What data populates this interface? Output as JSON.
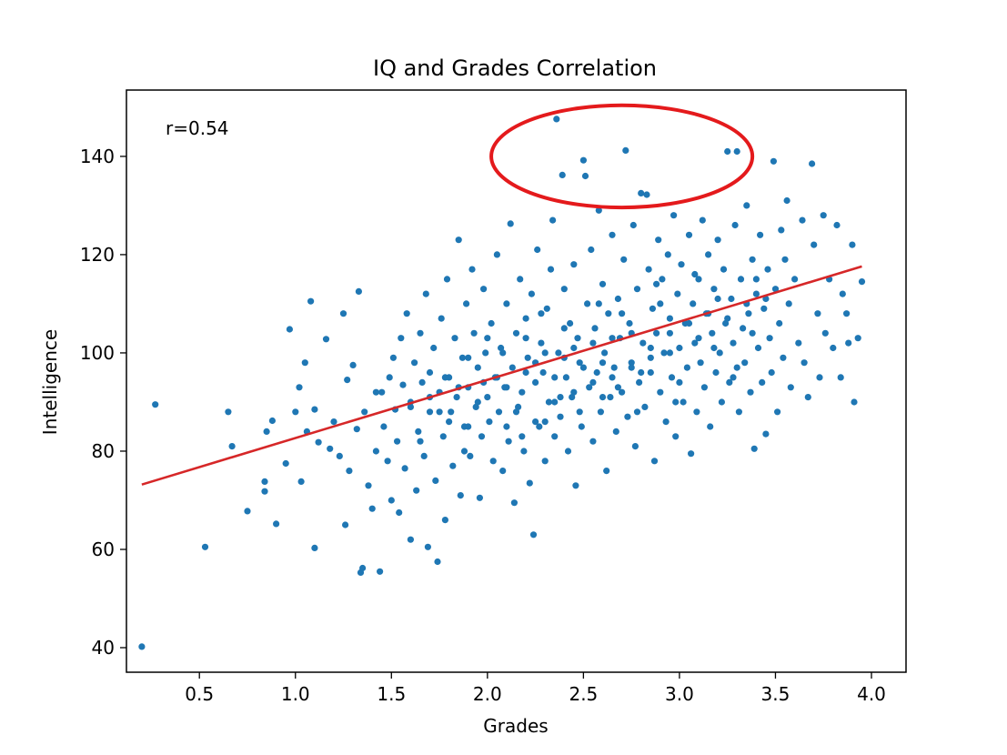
{
  "chart_data": {
    "type": "scatter",
    "title": "IQ and Grades Correlation",
    "xlabel": "Grades",
    "ylabel": "Intelligence",
    "xlim": [
      0.12,
      4.18
    ],
    "ylim": [
      35.0,
      153.5
    ],
    "x_ticks": [
      0.5,
      1.0,
      1.5,
      2.0,
      2.5,
      3.0,
      3.5,
      4.0
    ],
    "x_tick_labels": [
      "0.5",
      "1.0",
      "1.5",
      "2.0",
      "2.5",
      "3.0",
      "3.5",
      "4.0"
    ],
    "y_ticks": [
      40,
      60,
      80,
      100,
      120,
      140
    ],
    "y_tick_labels": [
      "40",
      "60",
      "80",
      "100",
      "120",
      "140"
    ],
    "annotation": "r=0.54",
    "grid": false,
    "point_color": "#1f77b4",
    "fit_color": "#d62728",
    "highlight_color": "#e41a1c",
    "fit_line": {
      "x": [
        0.2,
        3.95
      ],
      "y": [
        73.2,
        117.6
      ]
    },
    "highlight_ellipse": {
      "cx": 2.7,
      "cy": 140.0,
      "rx": 0.68,
      "ry": 10.4
    },
    "points": [
      [
        0.2,
        40.2
      ],
      [
        0.27,
        89.5
      ],
      [
        0.53,
        60.5
      ],
      [
        0.65,
        88
      ],
      [
        0.67,
        81
      ],
      [
        0.75,
        67.8
      ],
      [
        0.84,
        71.8
      ],
      [
        0.84,
        73.8
      ],
      [
        0.85,
        84
      ],
      [
        0.88,
        86.2
      ],
      [
        0.9,
        65.2
      ],
      [
        0.95,
        77.5
      ],
      [
        0.97,
        104.8
      ],
      [
        1.0,
        88
      ],
      [
        1.02,
        93
      ],
      [
        1.03,
        73.8
      ],
      [
        1.05,
        98
      ],
      [
        1.06,
        84
      ],
      [
        1.08,
        110.5
      ],
      [
        1.1,
        60.3
      ],
      [
        1.1,
        88.5
      ],
      [
        1.12,
        81.8
      ],
      [
        1.16,
        102.8
      ],
      [
        1.18,
        80.5
      ],
      [
        1.2,
        86
      ],
      [
        1.23,
        79
      ],
      [
        1.25,
        108
      ],
      [
        1.26,
        65
      ],
      [
        1.27,
        94.5
      ],
      [
        1.28,
        76
      ],
      [
        1.3,
        97.5
      ],
      [
        1.32,
        84.5
      ],
      [
        1.33,
        112.5
      ],
      [
        1.34,
        55.3
      ],
      [
        1.35,
        56.2
      ],
      [
        1.36,
        88
      ],
      [
        1.38,
        73
      ],
      [
        1.4,
        68.3
      ],
      [
        1.42,
        80
      ],
      [
        1.44,
        55.5
      ],
      [
        1.45,
        92
      ],
      [
        1.46,
        85
      ],
      [
        1.48,
        78
      ],
      [
        1.49,
        95
      ],
      [
        1.5,
        70
      ],
      [
        1.51,
        99
      ],
      [
        1.52,
        88.5
      ],
      [
        1.53,
        82
      ],
      [
        1.54,
        67.5
      ],
      [
        1.55,
        103
      ],
      [
        1.56,
        93.5
      ],
      [
        1.57,
        76.5
      ],
      [
        1.58,
        108
      ],
      [
        1.6,
        62
      ],
      [
        1.6,
        89
      ],
      [
        1.62,
        98
      ],
      [
        1.63,
        72
      ],
      [
        1.64,
        84
      ],
      [
        1.65,
        104
      ],
      [
        1.66,
        94
      ],
      [
        1.67,
        79
      ],
      [
        1.68,
        112
      ],
      [
        1.69,
        60.5
      ],
      [
        1.7,
        88
      ],
      [
        1.7,
        96
      ],
      [
        1.72,
        101
      ],
      [
        1.73,
        74
      ],
      [
        1.74,
        57.5
      ],
      [
        1.75,
        92
      ],
      [
        1.76,
        107
      ],
      [
        1.77,
        83
      ],
      [
        1.78,
        66
      ],
      [
        1.79,
        115
      ],
      [
        1.8,
        95
      ],
      [
        1.81,
        88
      ],
      [
        1.82,
        77
      ],
      [
        1.83,
        103
      ],
      [
        1.84,
        91
      ],
      [
        1.85,
        123
      ],
      [
        1.86,
        71
      ],
      [
        1.87,
        99
      ],
      [
        1.88,
        85
      ],
      [
        1.89,
        110
      ],
      [
        1.9,
        93
      ],
      [
        1.91,
        79
      ],
      [
        1.92,
        117
      ],
      [
        1.93,
        104
      ],
      [
        1.94,
        89
      ],
      [
        1.95,
        97
      ],
      [
        1.96,
        70.5
      ],
      [
        1.97,
        83
      ],
      [
        1.98,
        113
      ],
      [
        1.99,
        100
      ],
      [
        2.0,
        91
      ],
      [
        2.01,
        86
      ],
      [
        2.02,
        106
      ],
      [
        2.03,
        78
      ],
      [
        2.04,
        95
      ],
      [
        2.05,
        120
      ],
      [
        2.06,
        88
      ],
      [
        2.07,
        101
      ],
      [
        2.08,
        76
      ],
      [
        2.09,
        93
      ],
      [
        2.1,
        110
      ],
      [
        2.11,
        82
      ],
      [
        2.12,
        126.3
      ],
      [
        2.13,
        97
      ],
      [
        2.14,
        69.5
      ],
      [
        2.15,
        104
      ],
      [
        2.16,
        89
      ],
      [
        2.17,
        115
      ],
      [
        2.18,
        92
      ],
      [
        2.19,
        80
      ],
      [
        2.2,
        107
      ],
      [
        2.21,
        99
      ],
      [
        2.22,
        73.5
      ],
      [
        2.23,
        112
      ],
      [
        2.24,
        63
      ],
      [
        2.25,
        94
      ],
      [
        2.26,
        121
      ],
      [
        2.27,
        85
      ],
      [
        2.28,
        102
      ],
      [
        2.29,
        96
      ],
      [
        2.3,
        78
      ],
      [
        2.31,
        109
      ],
      [
        2.32,
        90
      ],
      [
        2.33,
        117
      ],
      [
        2.34,
        127
      ],
      [
        2.35,
        83
      ],
      [
        2.36,
        147.6
      ],
      [
        2.37,
        100
      ],
      [
        2.38,
        87
      ],
      [
        2.39,
        136.2
      ],
      [
        2.4,
        113
      ],
      [
        2.41,
        95
      ],
      [
        2.42,
        80
      ],
      [
        2.43,
        106
      ],
      [
        2.44,
        91
      ],
      [
        2.45,
        118
      ],
      [
        2.46,
        73
      ],
      [
        2.47,
        103
      ],
      [
        2.48,
        98
      ],
      [
        2.49,
        85
      ],
      [
        2.5,
        139.2
      ],
      [
        2.51,
        136
      ],
      [
        2.52,
        110
      ],
      [
        2.53,
        93
      ],
      [
        2.54,
        121
      ],
      [
        2.55,
        82
      ],
      [
        2.56,
        105
      ],
      [
        2.57,
        96
      ],
      [
        2.58,
        129
      ],
      [
        2.59,
        88
      ],
      [
        2.6,
        114
      ],
      [
        2.61,
        100
      ],
      [
        2.62,
        76
      ],
      [
        2.63,
        108
      ],
      [
        2.64,
        91
      ],
      [
        2.65,
        124
      ],
      [
        2.66,
        97
      ],
      [
        2.67,
        84
      ],
      [
        2.68,
        111
      ],
      [
        2.69,
        103
      ],
      [
        2.7,
        92
      ],
      [
        2.71,
        119
      ],
      [
        2.72,
        141.2
      ],
      [
        2.73,
        87
      ],
      [
        2.74,
        106
      ],
      [
        2.75,
        98
      ],
      [
        2.76,
        126
      ],
      [
        2.77,
        81
      ],
      [
        2.78,
        113
      ],
      [
        2.79,
        94
      ],
      [
        2.8,
        132.5
      ],
      [
        2.81,
        102
      ],
      [
        2.82,
        89
      ],
      [
        2.83,
        132.2
      ],
      [
        2.84,
        117
      ],
      [
        2.85,
        96
      ],
      [
        2.86,
        109
      ],
      [
        2.87,
        78
      ],
      [
        2.88,
        104
      ],
      [
        2.89,
        123
      ],
      [
        2.9,
        92
      ],
      [
        2.91,
        115
      ],
      [
        2.92,
        100
      ],
      [
        2.93,
        86
      ],
      [
        2.94,
        120
      ],
      [
        2.95,
        107
      ],
      [
        2.96,
        95
      ],
      [
        2.97,
        128
      ],
      [
        2.98,
        83
      ],
      [
        2.99,
        112
      ],
      [
        3.0,
        101
      ],
      [
        3.01,
        118
      ],
      [
        3.02,
        90
      ],
      [
        3.03,
        106
      ],
      [
        3.04,
        97
      ],
      [
        3.05,
        124
      ],
      [
        3.06,
        79.5
      ],
      [
        3.07,
        110
      ],
      [
        3.08,
        102
      ],
      [
        3.09,
        88
      ],
      [
        3.1,
        115
      ],
      [
        3.11,
        98
      ],
      [
        3.12,
        127
      ],
      [
        3.13,
        93
      ],
      [
        3.14,
        108
      ],
      [
        3.15,
        120
      ],
      [
        3.16,
        85
      ],
      [
        3.17,
        104
      ],
      [
        3.18,
        113
      ],
      [
        3.19,
        96
      ],
      [
        3.2,
        123
      ],
      [
        3.21,
        100
      ],
      [
        3.22,
        90
      ],
      [
        3.23,
        117
      ],
      [
        3.24,
        106
      ],
      [
        3.25,
        141
      ],
      [
        3.26,
        94
      ],
      [
        3.27,
        111
      ],
      [
        3.28,
        102
      ],
      [
        3.29,
        126
      ],
      [
        3.3,
        141
      ],
      [
        3.31,
        88
      ],
      [
        3.32,
        115
      ],
      [
        3.33,
        105
      ],
      [
        3.34,
        98
      ],
      [
        3.35,
        130
      ],
      [
        3.36,
        108
      ],
      [
        3.37,
        92
      ],
      [
        3.38,
        119
      ],
      [
        3.39,
        80.5
      ],
      [
        3.4,
        112
      ],
      [
        3.41,
        101
      ],
      [
        3.42,
        124
      ],
      [
        3.43,
        94
      ],
      [
        3.44,
        109
      ],
      [
        3.45,
        83.5
      ],
      [
        3.46,
        117
      ],
      [
        3.47,
        103
      ],
      [
        3.48,
        96
      ],
      [
        3.49,
        139
      ],
      [
        3.5,
        113
      ],
      [
        3.51,
        88
      ],
      [
        3.52,
        106
      ],
      [
        3.53,
        125
      ],
      [
        3.54,
        99
      ],
      [
        3.55,
        119
      ],
      [
        3.56,
        131
      ],
      [
        3.57,
        110
      ],
      [
        3.58,
        93
      ],
      [
        3.6,
        115
      ],
      [
        3.62,
        102
      ],
      [
        3.64,
        127
      ],
      [
        3.65,
        98
      ],
      [
        3.67,
        91
      ],
      [
        3.69,
        138.5
      ],
      [
        3.7,
        122
      ],
      [
        3.72,
        108
      ],
      [
        3.73,
        95
      ],
      [
        3.75,
        128
      ],
      [
        3.76,
        104
      ],
      [
        3.78,
        115
      ],
      [
        3.8,
        101
      ],
      [
        3.82,
        126
      ],
      [
        3.84,
        95
      ],
      [
        3.85,
        112
      ],
      [
        3.87,
        108
      ],
      [
        3.88,
        102
      ],
      [
        3.9,
        122
      ],
      [
        3.91,
        90
      ],
      [
        3.93,
        103
      ],
      [
        3.95,
        114.5
      ],
      [
        1.42,
        92
      ],
      [
        1.6,
        90
      ],
      [
        1.7,
        91
      ],
      [
        1.75,
        88
      ],
      [
        1.85,
        93
      ],
      [
        1.9,
        85
      ],
      [
        1.95,
        90
      ],
      [
        2.05,
        95
      ],
      [
        2.1,
        93
      ],
      [
        2.2,
        96
      ],
      [
        2.25,
        98
      ],
      [
        2.3,
        100
      ],
      [
        2.35,
        95
      ],
      [
        2.4,
        99
      ],
      [
        2.45,
        101
      ],
      [
        2.55,
        102
      ],
      [
        2.6,
        98
      ],
      [
        2.65,
        103
      ],
      [
        2.75,
        104
      ],
      [
        2.85,
        101
      ],
      [
        2.95,
        104
      ],
      [
        3.05,
        106
      ],
      [
        3.15,
        108
      ],
      [
        3.25,
        107
      ],
      [
        3.35,
        110
      ],
      [
        3.45,
        111
      ],
      [
        2.15,
        88
      ],
      [
        2.25,
        86
      ],
      [
        2.35,
        90
      ],
      [
        2.45,
        92
      ],
      [
        2.55,
        94
      ],
      [
        2.65,
        95
      ],
      [
        2.75,
        97
      ],
      [
        2.85,
        99
      ],
      [
        2.95,
        100
      ],
      [
        1.8,
        86
      ],
      [
        1.9,
        99
      ],
      [
        2.0,
        103
      ],
      [
        2.1,
        85
      ],
      [
        2.2,
        103
      ],
      [
        2.3,
        86
      ],
      [
        2.4,
        105
      ],
      [
        2.5,
        97
      ],
      [
        2.6,
        91
      ],
      [
        2.7,
        108
      ],
      [
        2.8,
        96
      ],
      [
        2.9,
        110
      ],
      [
        3.0,
        94
      ],
      [
        3.1,
        103
      ],
      [
        3.2,
        111
      ],
      [
        3.3,
        97
      ],
      [
        3.4,
        115
      ],
      [
        1.65,
        82
      ],
      [
        1.78,
        95
      ],
      [
        1.88,
        80
      ],
      [
        1.98,
        94
      ],
      [
        2.08,
        100
      ],
      [
        2.18,
        83
      ],
      [
        2.28,
        108
      ],
      [
        2.38,
        91
      ],
      [
        2.48,
        88
      ],
      [
        2.58,
        110
      ],
      [
        2.68,
        93
      ],
      [
        2.78,
        88
      ],
      [
        2.88,
        114
      ],
      [
        2.98,
        90
      ],
      [
        3.08,
        116
      ],
      [
        3.18,
        101
      ],
      [
        3.28,
        95
      ],
      [
        3.38,
        104
      ]
    ]
  }
}
